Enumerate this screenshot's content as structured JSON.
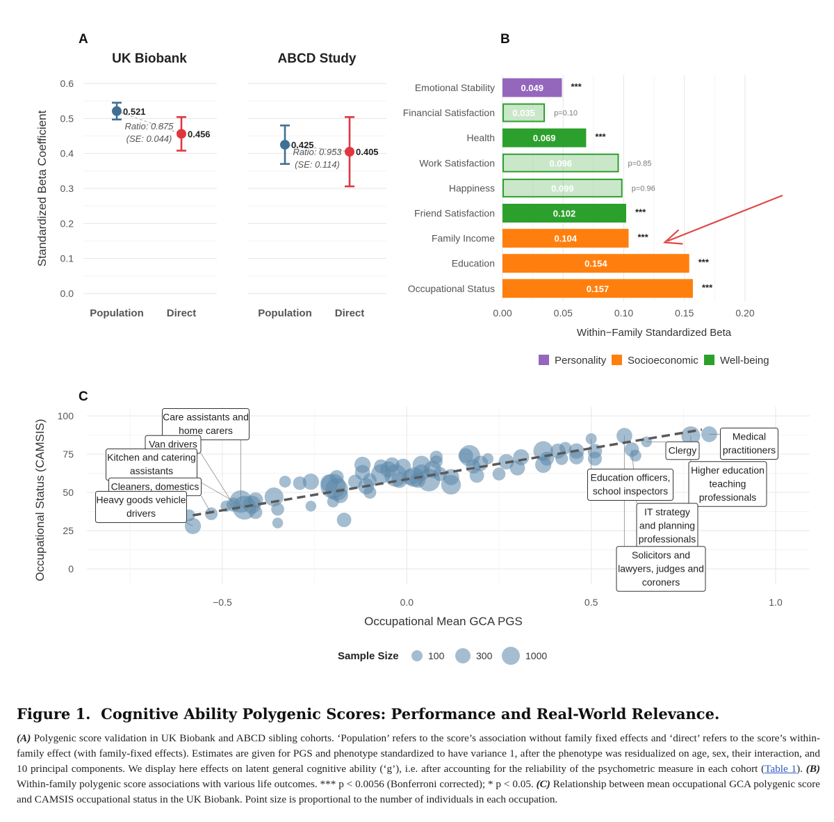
{
  "panels": {
    "a_letter": "A",
    "b_letter": "B",
    "c_letter": "C"
  },
  "chart_data": [
    {
      "id": "A",
      "type": "scatter",
      "subtitle": "error bars",
      "ylabel": "Standardized Beta Coefficient",
      "ylim": [
        0,
        0.6
      ],
      "yticks": [
        0.0,
        0.1,
        0.2,
        0.3,
        0.4,
        0.5,
        0.6
      ],
      "ytick_labels": [
        "0.0",
        "0.1",
        "0.2",
        "0.3",
        "0.4",
        "0.5",
        "0.6"
      ],
      "categories": [
        "Population",
        "Direct"
      ],
      "colors": {
        "Population": "#3f6f95",
        "Direct": "#e0373e"
      },
      "grid": true,
      "facets": [
        {
          "title": "UK Biobank",
          "points": [
            {
              "category": "Population",
              "value": 0.521,
              "low": 0.497,
              "high": 0.545,
              "label": "0.521"
            },
            {
              "category": "Direct",
              "value": 0.456,
              "low": 0.408,
              "high": 0.504,
              "label": "0.456"
            }
          ],
          "ratio_text": "Ratio: 0.875",
          "se_text": "(SE: 0.044)"
        },
        {
          "title": "ABCD Study",
          "points": [
            {
              "category": "Population",
              "value": 0.425,
              "low": 0.37,
              "high": 0.48,
              "label": "0.425"
            },
            {
              "category": "Direct",
              "value": 0.405,
              "low": 0.306,
              "high": 0.504,
              "label": "0.405"
            }
          ],
          "ratio_text": "Ratio: 0.953",
          "se_text": "(SE: 0.114)"
        }
      ]
    },
    {
      "id": "B",
      "type": "bar",
      "orientation": "horizontal",
      "xlabel": "Within−Family Standardized Beta",
      "xlim": [
        0,
        0.22
      ],
      "xticks": [
        0.0,
        0.05,
        0.1,
        0.15,
        0.2
      ],
      "xtick_labels": [
        "0.00",
        "0.05",
        "0.10",
        "0.15",
        "0.20"
      ],
      "grid": true,
      "legend_position": "bottom",
      "legend": [
        {
          "name": "Personality",
          "color": "#9467bd"
        },
        {
          "name": "Socioeconomic",
          "color": "#ff7f0e"
        },
        {
          "name": "Well-being",
          "color": "#2ca02c"
        }
      ],
      "bars": [
        {
          "label": "Emotional Stability",
          "value": 0.049,
          "value_label": "0.049",
          "group": "Personality",
          "significant": true,
          "annotation": "***"
        },
        {
          "label": "Financial Satisfaction",
          "value": 0.035,
          "value_label": "0.035",
          "group": "Well-being",
          "significant": false,
          "annotation": "p=0.10"
        },
        {
          "label": "Health",
          "value": 0.069,
          "value_label": "0.069",
          "group": "Well-being",
          "significant": true,
          "annotation": "***"
        },
        {
          "label": "Work Satisfaction",
          "value": 0.096,
          "value_label": "0.096",
          "group": "Well-being",
          "significant": false,
          "annotation": "p=0.85"
        },
        {
          "label": "Happiness",
          "value": 0.099,
          "value_label": "0.099",
          "group": "Well-being",
          "significant": false,
          "annotation": "p=0.96"
        },
        {
          "label": "Friend Satisfaction",
          "value": 0.102,
          "value_label": "0.102",
          "group": "Well-being",
          "significant": true,
          "annotation": "***"
        },
        {
          "label": "Family Income",
          "value": 0.104,
          "value_label": "0.104",
          "group": "Socioeconomic",
          "significant": true,
          "annotation": "***"
        },
        {
          "label": "Education",
          "value": 0.154,
          "value_label": "0.154",
          "group": "Socioeconomic",
          "significant": true,
          "annotation": "***"
        },
        {
          "label": "Occupational Status",
          "value": 0.157,
          "value_label": "0.157",
          "group": "Socioeconomic",
          "significant": true,
          "annotation": "***"
        }
      ],
      "arrow_color": "#e04848",
      "arrow_target": "Family Income"
    },
    {
      "id": "C",
      "type": "scatter",
      "xlabel": "Occupational Mean GCA PGS",
      "ylabel": "Occupational Status (CAMSIS)",
      "xlim": [
        -0.85,
        1.09
      ],
      "ylim": [
        -4,
        103
      ],
      "xticks": [
        -0.5,
        0.0,
        0.5,
        1.0
      ],
      "xtick_labels": [
        "−0.5",
        "0.0",
        "0.5",
        "1.0"
      ],
      "yticks": [
        0,
        25,
        50,
        75,
        100
      ],
      "ytick_labels": [
        "0",
        "25",
        "50",
        "75",
        "100"
      ],
      "grid": true,
      "point_color": "#5b86a9",
      "trend_line": {
        "x": [
          -0.58,
          0.8
        ],
        "y": [
          35,
          91
        ]
      },
      "size_legend": {
        "title": "Sample Size",
        "values": [
          100,
          300,
          1000
        ],
        "labels": [
          "100",
          "300",
          "1000"
        ]
      },
      "points": [
        {
          "x": -0.58,
          "y": 28,
          "n": 300
        },
        {
          "x": -0.59,
          "y": 35,
          "n": 120
        },
        {
          "x": -0.53,
          "y": 36,
          "n": 150
        },
        {
          "x": -0.47,
          "y": 42,
          "n": 200
        },
        {
          "x": -0.49,
          "y": 41,
          "n": 100
        },
        {
          "x": -0.45,
          "y": 44,
          "n": 700
        },
        {
          "x": -0.44,
          "y": 40,
          "n": 800
        },
        {
          "x": -0.42,
          "y": 42,
          "n": 400
        },
        {
          "x": -0.41,
          "y": 45,
          "n": 250
        },
        {
          "x": -0.41,
          "y": 37,
          "n": 180
        },
        {
          "x": -0.36,
          "y": 47,
          "n": 450
        },
        {
          "x": -0.35,
          "y": 39,
          "n": 160
        },
        {
          "x": -0.35,
          "y": 30,
          "n": 90
        },
        {
          "x": -0.33,
          "y": 57,
          "n": 120
        },
        {
          "x": -0.29,
          "y": 56,
          "n": 180
        },
        {
          "x": -0.26,
          "y": 41,
          "n": 90
        },
        {
          "x": -0.26,
          "y": 57,
          "n": 300
        },
        {
          "x": -0.21,
          "y": 56,
          "n": 380
        },
        {
          "x": -0.2,
          "y": 54,
          "n": 900
        },
        {
          "x": -0.19,
          "y": 52,
          "n": 700
        },
        {
          "x": -0.18,
          "y": 48,
          "n": 260
        },
        {
          "x": -0.2,
          "y": 44,
          "n": 120
        },
        {
          "x": -0.19,
          "y": 60,
          "n": 200
        },
        {
          "x": -0.17,
          "y": 32,
          "n": 220
        },
        {
          "x": -0.14,
          "y": 57,
          "n": 200
        },
        {
          "x": -0.12,
          "y": 68,
          "n": 300
        },
        {
          "x": -0.12,
          "y": 63,
          "n": 250
        },
        {
          "x": -0.11,
          "y": 54,
          "n": 300
        },
        {
          "x": -0.1,
          "y": 58,
          "n": 180
        },
        {
          "x": -0.1,
          "y": 50,
          "n": 150
        },
        {
          "x": -0.07,
          "y": 67,
          "n": 200
        },
        {
          "x": -0.07,
          "y": 62,
          "n": 500
        },
        {
          "x": -0.05,
          "y": 65,
          "n": 300
        },
        {
          "x": -0.04,
          "y": 68,
          "n": 240
        },
        {
          "x": -0.03,
          "y": 61,
          "n": 700
        },
        {
          "x": -0.02,
          "y": 58,
          "n": 280
        },
        {
          "x": -0.01,
          "y": 67,
          "n": 260
        },
        {
          "x": 0.01,
          "y": 60,
          "n": 300
        },
        {
          "x": 0.02,
          "y": 60,
          "n": 500
        },
        {
          "x": 0.03,
          "y": 58,
          "n": 260
        },
        {
          "x": 0.04,
          "y": 63,
          "n": 300
        },
        {
          "x": 0.04,
          "y": 68,
          "n": 400
        },
        {
          "x": 0.06,
          "y": 58,
          "n": 700
        },
        {
          "x": 0.07,
          "y": 65,
          "n": 350
        },
        {
          "x": 0.08,
          "y": 70,
          "n": 150
        },
        {
          "x": 0.09,
          "y": 62,
          "n": 200
        },
        {
          "x": 0.08,
          "y": 73,
          "n": 160
        },
        {
          "x": 0.12,
          "y": 60,
          "n": 300
        },
        {
          "x": 0.12,
          "y": 55,
          "n": 500
        },
        {
          "x": 0.16,
          "y": 74,
          "n": 230
        },
        {
          "x": 0.17,
          "y": 74,
          "n": 600
        },
        {
          "x": 0.18,
          "y": 67,
          "n": 220
        },
        {
          "x": 0.19,
          "y": 61,
          "n": 220
        },
        {
          "x": 0.2,
          "y": 69,
          "n": 260
        },
        {
          "x": 0.22,
          "y": 72,
          "n": 100
        },
        {
          "x": 0.25,
          "y": 62,
          "n": 160
        },
        {
          "x": 0.27,
          "y": 70,
          "n": 260
        },
        {
          "x": 0.3,
          "y": 66,
          "n": 250
        },
        {
          "x": 0.31,
          "y": 73,
          "n": 290
        },
        {
          "x": 0.37,
          "y": 77,
          "n": 500
        },
        {
          "x": 0.37,
          "y": 68,
          "n": 300
        },
        {
          "x": 0.38,
          "y": 72,
          "n": 200
        },
        {
          "x": 0.41,
          "y": 77,
          "n": 250
        },
        {
          "x": 0.42,
          "y": 72,
          "n": 150
        },
        {
          "x": 0.43,
          "y": 79,
          "n": 130
        },
        {
          "x": 0.46,
          "y": 77,
          "n": 260
        },
        {
          "x": 0.46,
          "y": 73,
          "n": 220
        },
        {
          "x": 0.51,
          "y": 77,
          "n": 220
        },
        {
          "x": 0.51,
          "y": 72,
          "n": 200
        },
        {
          "x": 0.5,
          "y": 85,
          "n": 100
        },
        {
          "x": 0.59,
          "y": 87,
          "n": 280
        },
        {
          "x": 0.61,
          "y": 78,
          "n": 220
        },
        {
          "x": 0.62,
          "y": 74,
          "n": 120
        },
        {
          "x": 0.65,
          "y": 83,
          "n": 90
        },
        {
          "x": 0.77,
          "y": 87,
          "n": 450
        },
        {
          "x": 0.82,
          "y": 88,
          "n": 280
        }
      ],
      "annotations": [
        {
          "text": "Care assistants and home carers",
          "lines": [
            "Care assistants and",
            "home carers"
          ],
          "point": [
            -0.45,
            44
          ]
        },
        {
          "text": "Van drivers",
          "lines": [
            "Van drivers"
          ],
          "point": [
            -0.47,
            42
          ]
        },
        {
          "text": "Kitchen and catering assistants",
          "lines": [
            "Kitchen and catering",
            "assistants"
          ],
          "point": [
            -0.44,
            40
          ]
        },
        {
          "text": "Cleaners, domestics",
          "lines": [
            "Cleaners, domestics"
          ],
          "point": [
            -0.53,
            36
          ]
        },
        {
          "text": "Heavy goods vehicle drivers",
          "lines": [
            "Heavy goods vehicle",
            "drivers"
          ],
          "point": [
            -0.58,
            28
          ]
        },
        {
          "text": "Medical practitioners",
          "lines": [
            "Medical",
            "practitioners"
          ],
          "point": [
            0.82,
            88
          ]
        },
        {
          "text": "Clergy",
          "lines": [
            "Clergy"
          ],
          "point": [
            0.65,
            83
          ]
        },
        {
          "text": "Higher education teaching professionals",
          "lines": [
            "Higher education",
            "teaching",
            "professionals"
          ],
          "point": [
            0.77,
            87
          ]
        },
        {
          "text": "Education officers, school inspectors",
          "lines": [
            "Education officers,",
            "school inspectors"
          ],
          "point": [
            0.5,
            85
          ]
        },
        {
          "text": "IT strategy and planning professionals",
          "lines": [
            "IT strategy",
            "and planning",
            "professionals"
          ],
          "point": [
            0.61,
            78
          ]
        },
        {
          "text": "Solicitors and lawyers, judges and coroners",
          "lines": [
            "Solicitors and",
            "lawyers, judges and",
            "coroners"
          ],
          "point": [
            0.59,
            87
          ]
        }
      ]
    }
  ],
  "caption": {
    "figure_label": "Figure 1.",
    "title": "Cognitive Ability Polygenic Scores: Performance and Real-World Relevance.",
    "a_tag": "(A)",
    "a_text": " Polygenic score validation in UK Biobank and ABCD sibling cohorts. ‘Population’ refers to the score’s association without family fixed effects and ‘direct’ refers to the score’s within-family effect (with family-fixed effects). Estimates are given for PGS and phenotype standardized to have variance 1, after the phenotype was residualized on age, sex, their interaction, and 10 principal components. We display here effects on latent general cognitive ability (‘g’), i.e. after accounting for the reliability of the psychometric measure in each cohort (",
    "link": "Table 1",
    "a_text_end": ").",
    "b_tag": "(B)",
    "b_text": " Within-family polygenic score associations with various life outcomes. *** p < 0.0056 (Bonferroni corrected); * p < 0.05.",
    "c_tag": "(C)",
    "c_text": " Relationship between mean occupational GCA polygenic score and CAMSIS occupational status in the UK Biobank. Point size is proportional to the number of individuals in each occupation."
  }
}
